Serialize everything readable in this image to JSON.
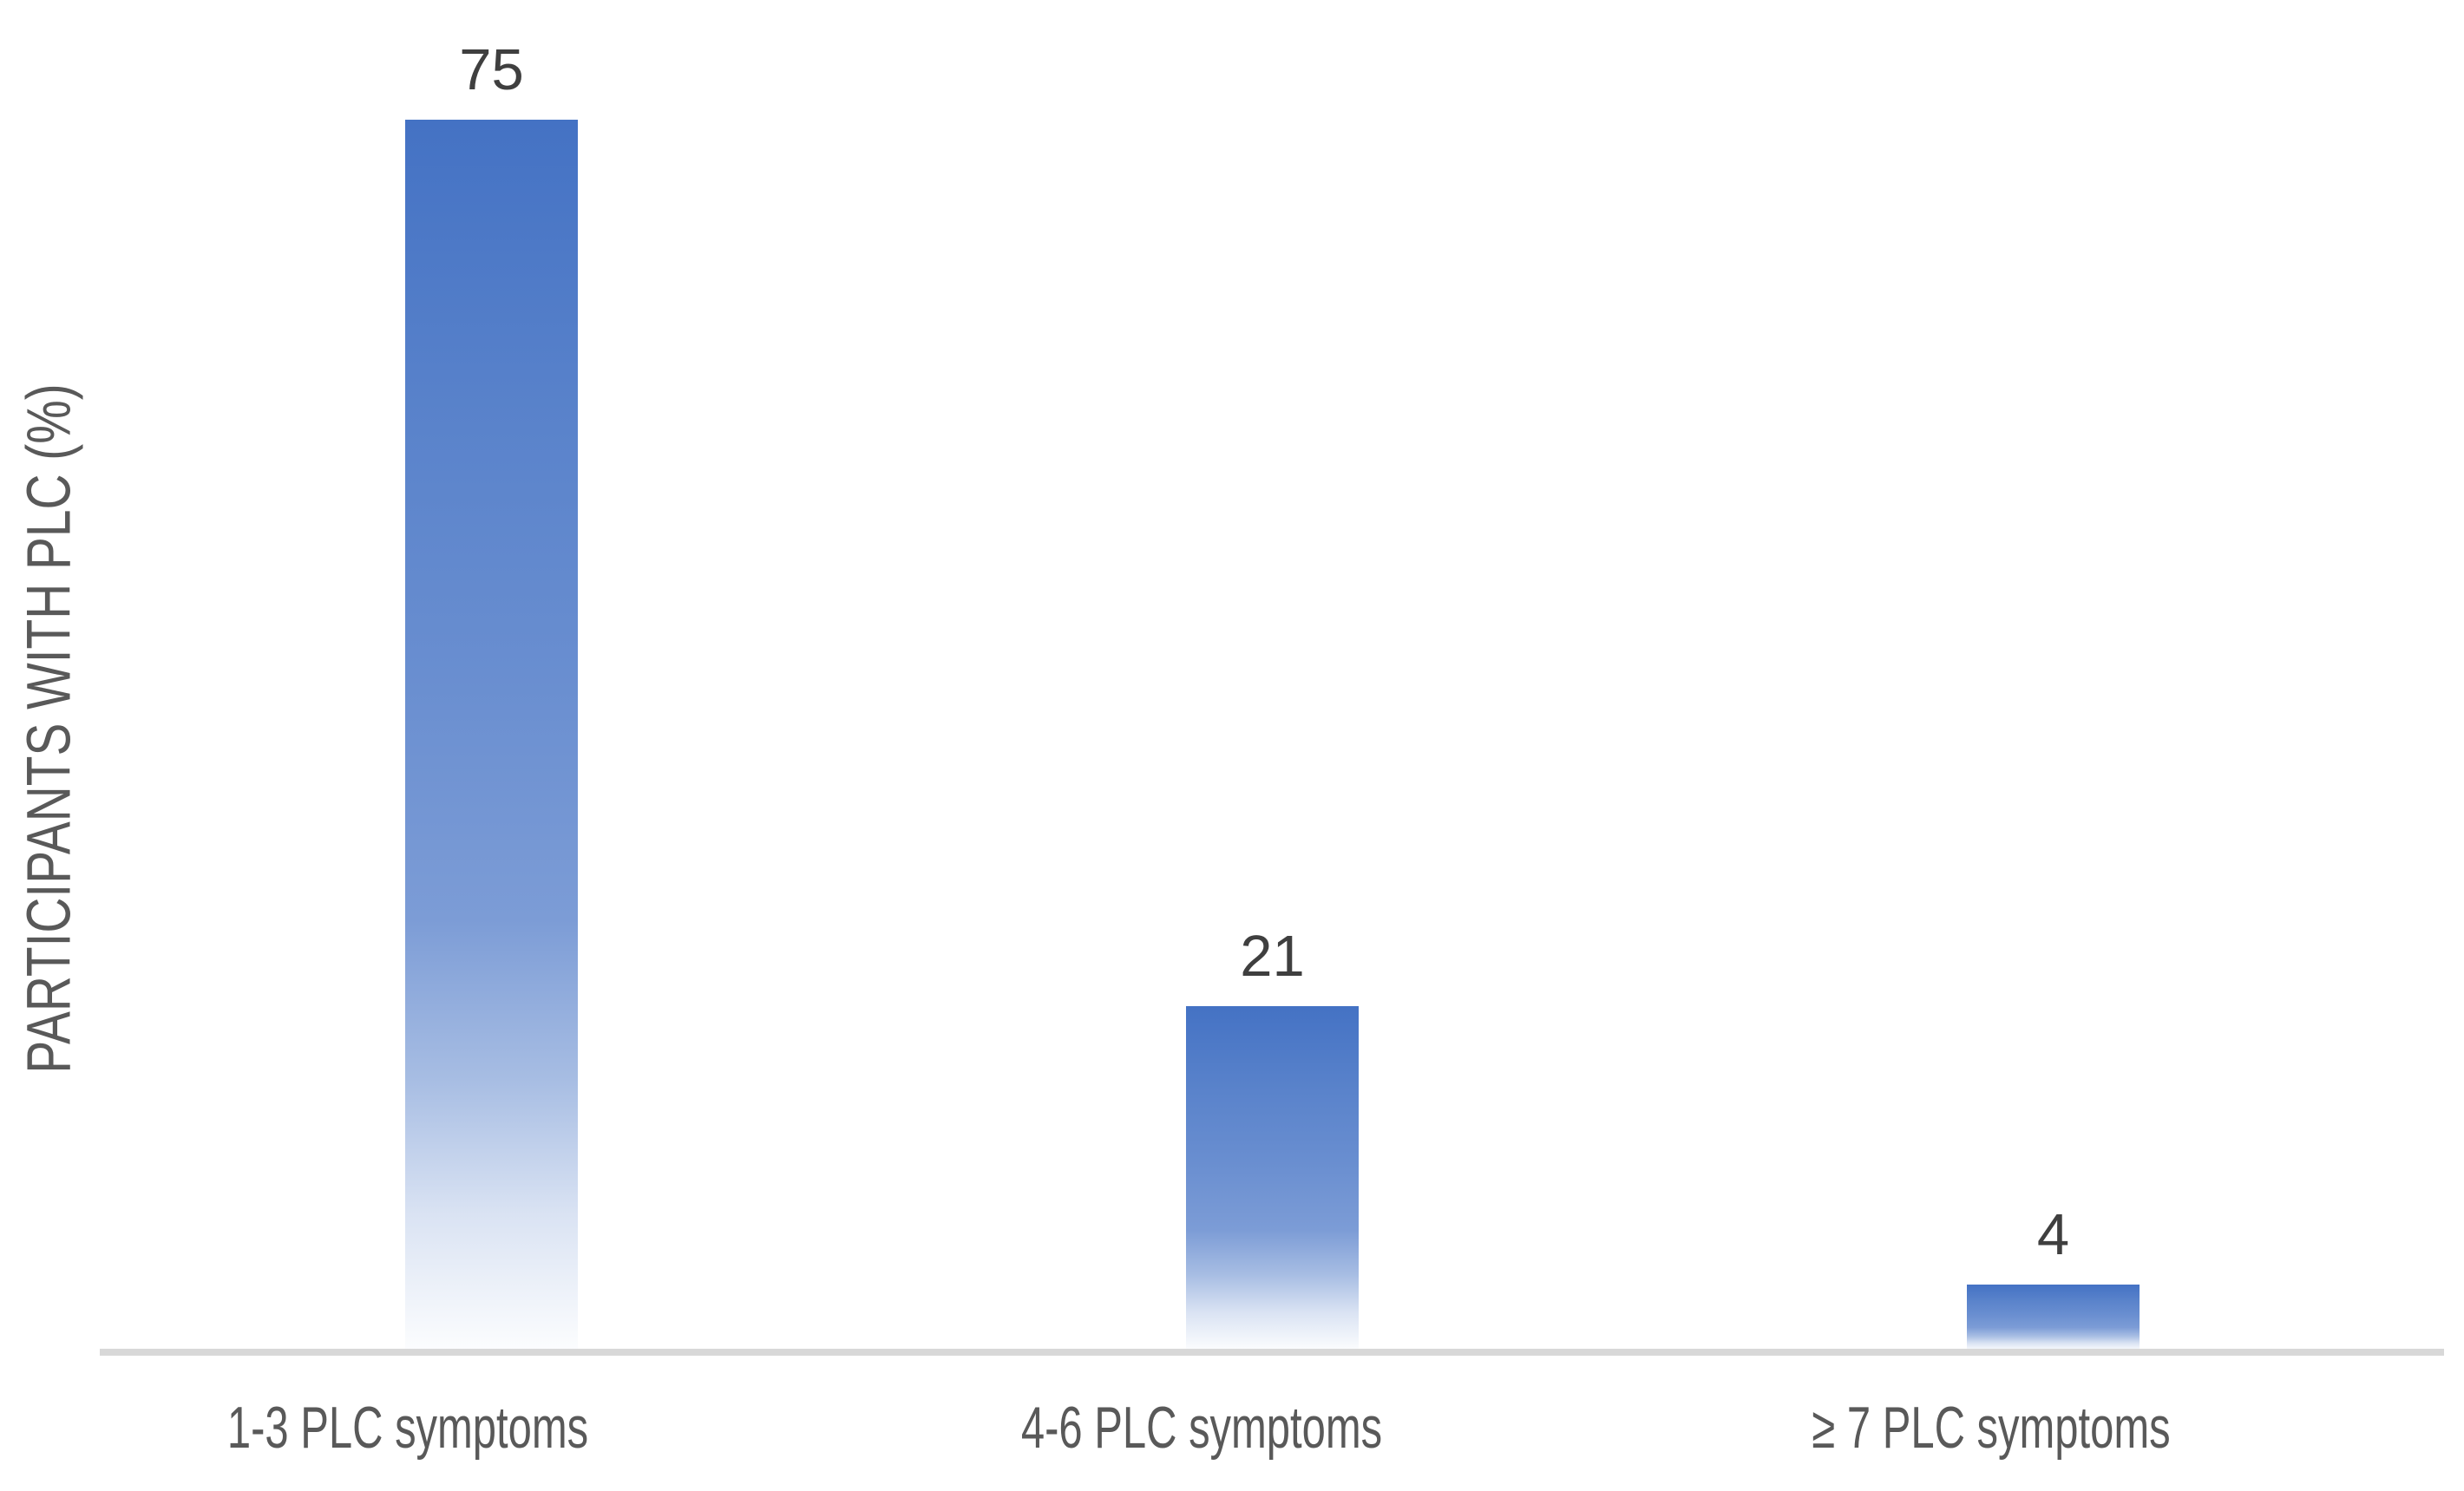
{
  "chart_data": {
    "type": "bar",
    "title": "",
    "xlabel": "",
    "ylabel": "PARTICIPANTS WITH PLC (%)",
    "categories": [
      "1-3 PLC symptoms",
      "4-6 PLC symptoms",
      "≥ 7 PLC symptoms"
    ],
    "values": [
      75,
      21,
      4
    ],
    "data_labels": [
      "75",
      "21",
      "4"
    ],
    "ylim": [
      0,
      75
    ],
    "grid": false,
    "legend": "none",
    "bar_gradient_top": "#4472C4",
    "bar_gradient_bottom": "#FFFFFF"
  },
  "colors": {
    "background": "#FFFFFF",
    "axis_line": "#D8D8D8",
    "category_text": "#595959",
    "value_text": "#3F3F3F",
    "y_title_text": "#595959"
  }
}
